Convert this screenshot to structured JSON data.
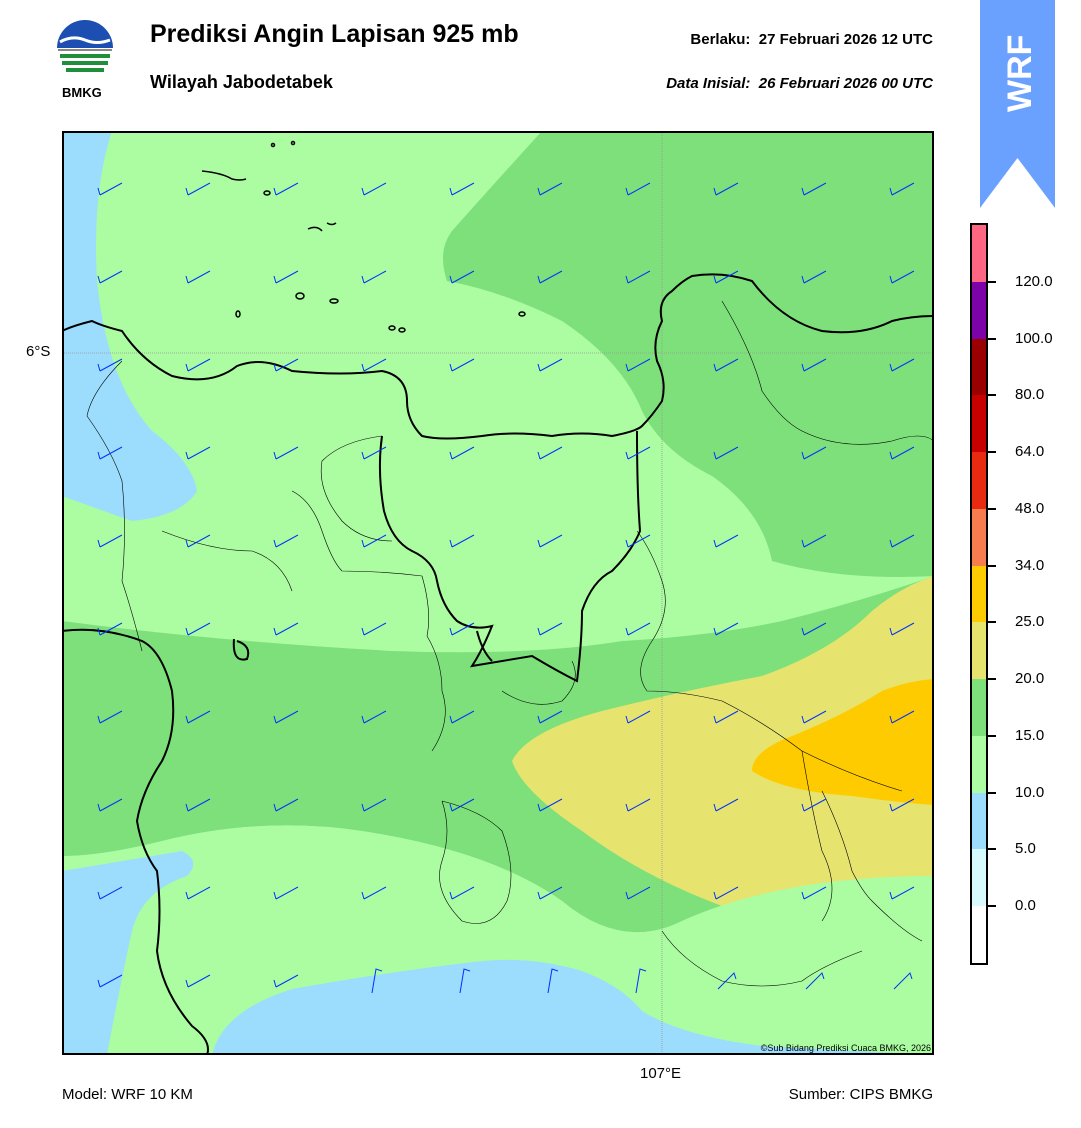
{
  "header": {
    "title": "Prediksi Angin Lapisan 925 mb",
    "subtitle": "Wilayah Jabodetabek",
    "valid_label": "Berlaku:  27 Februari 2026 12 UTC",
    "init_label": "Data Inisial:  26 Februari 2026 00 UTC"
  },
  "logo": {
    "text": "BMKG",
    "icon": "bmkg-logo-icon"
  },
  "banner": {
    "text": "WRF",
    "color": "#6aa0fe"
  },
  "map": {
    "lat_label": "6°S",
    "lon_label": "107°E",
    "copyright": "©Sub Bidang Prediksi Cuaca BMKG, 2026",
    "barb_color": "#0033ff",
    "fill_colors": {
      "5-10": "#9cdcfd",
      "10-15": "#acfca2",
      "15-20": "#7de07b",
      "20-25": "#e6e46e",
      "25-34": "#fecb00"
    }
  },
  "colorbar": {
    "ticks": [
      "120.0",
      "100.0",
      "80.0",
      "64.0",
      "48.0",
      "34.0",
      "25.0",
      "20.0",
      "15.0",
      "10.0",
      "5.0",
      "0.0"
    ],
    "colors": [
      "#fe6681",
      "#7b03a8",
      "#9b0000",
      "#c80000",
      "#e82b10",
      "#f77c4e",
      "#fecb00",
      "#e6e46e",
      "#7de07b",
      "#acfca2",
      "#9cdcfd",
      "#d6fafd",
      "#ffffff"
    ]
  },
  "footer": {
    "model": "Model: WRF 10 KM",
    "source": "Sumber: CIPS BMKG"
  }
}
